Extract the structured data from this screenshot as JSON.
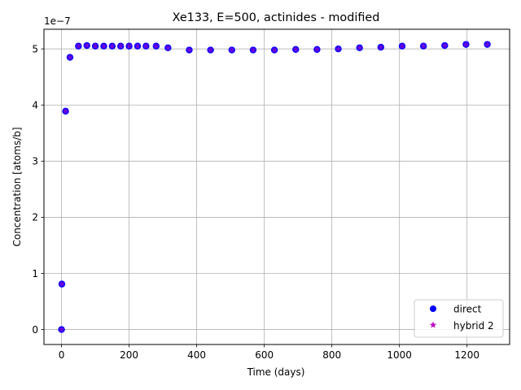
{
  "chart_data": {
    "type": "scatter",
    "title": "Xe133, E=500, actinides - modified",
    "xlabel": "Time (days)",
    "ylabel": "Concentration [atoms/b]",
    "y_multiplier_label": "1e−7",
    "xlim": [
      -52,
      1326
    ],
    "ylim": [
      -0.2666,
      5.3499
    ],
    "xticks": [
      0,
      200,
      400,
      600,
      800,
      1000,
      1200
    ],
    "yticks": [
      0,
      1,
      2,
      3,
      4,
      5
    ],
    "grid": true,
    "legend_position": "lower right",
    "series": [
      {
        "name": "direct",
        "marker": "circle",
        "color": "#0000ff",
        "x": [
          0,
          1,
          12,
          25,
          50,
          75,
          100,
          125,
          150,
          175,
          200,
          225,
          250,
          280,
          315,
          378,
          441,
          504,
          567,
          630,
          693,
          756,
          819,
          882,
          945,
          1008,
          1071,
          1134,
          1197,
          1260
        ],
        "y": [
          0.0,
          0.81,
          3.89,
          4.85,
          5.05,
          5.06,
          5.05,
          5.05,
          5.05,
          5.05,
          5.05,
          5.05,
          5.05,
          5.05,
          5.02,
          4.98,
          4.98,
          4.98,
          4.98,
          4.98,
          4.99,
          4.99,
          5.0,
          5.02,
          5.03,
          5.05,
          5.05,
          5.06,
          5.08,
          5.08
        ]
      },
      {
        "name": "hybrid 2",
        "marker": "star",
        "color": "#bf00bf",
        "x": [
          0,
          1,
          12,
          25,
          50,
          75,
          100,
          125,
          150,
          175,
          200,
          225,
          250,
          280,
          315,
          378,
          441,
          504,
          567,
          630,
          693,
          756,
          819,
          882,
          945,
          1008,
          1071,
          1134,
          1197,
          1260
        ],
        "y": [
          0.0,
          0.81,
          3.89,
          4.85,
          5.05,
          5.06,
          5.05,
          5.05,
          5.05,
          5.05,
          5.05,
          5.05,
          5.05,
          5.05,
          5.02,
          4.98,
          4.98,
          4.98,
          4.98,
          4.98,
          4.99,
          4.99,
          5.0,
          5.02,
          5.03,
          5.05,
          5.05,
          5.06,
          5.08,
          5.08
        ]
      }
    ]
  }
}
